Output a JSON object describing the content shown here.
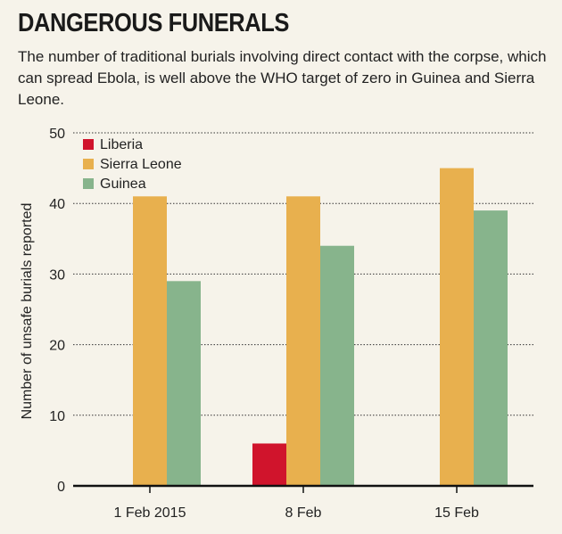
{
  "chart_data": {
    "type": "bar",
    "title": "DANGEROUS FUNERALS",
    "subtitle": "The number of traditional burials involving direct contact with the corpse, which can spread Ebola, is well above the WHO target of zero in Guinea and Sierra Leone.",
    "xlabel": "",
    "ylabel": "Number of unsafe burials reported",
    "ylim": [
      0,
      50
    ],
    "yticks": [
      0,
      10,
      20,
      30,
      40,
      50
    ],
    "grid": true,
    "legend_position": "top-left",
    "categories": [
      "1 Feb 2015",
      "8 Feb",
      "15 Feb"
    ],
    "series": [
      {
        "name": "Liberia",
        "color": "#d0142c",
        "values": [
          0,
          6,
          0
        ]
      },
      {
        "name": "Sierra Leone",
        "color": "#e8b04e",
        "values": [
          41,
          41,
          45
        ]
      },
      {
        "name": "Guinea",
        "color": "#87b48c",
        "values": [
          29,
          34,
          39
        ]
      }
    ]
  }
}
